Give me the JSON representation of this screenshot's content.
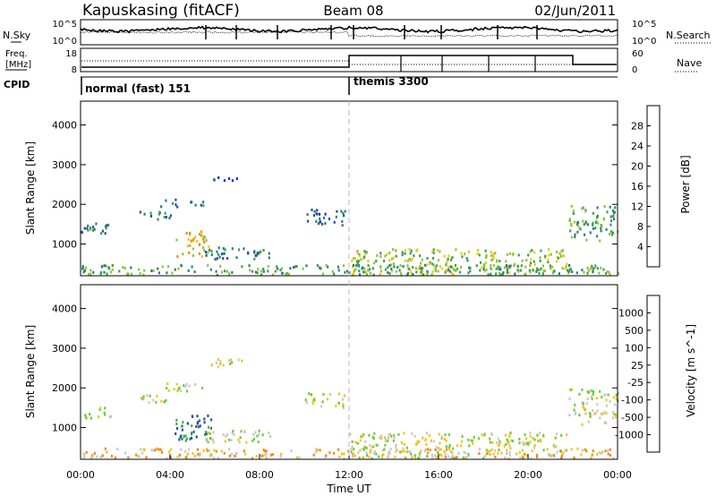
{
  "header": {
    "site": "Kapuskasing (fitACF)",
    "beam": "Beam 08",
    "date": "02/Jun/2011"
  },
  "noise_panel": {
    "left_label": "N.Sky",
    "right_label": "N.Search",
    "left_ticks": [
      "10^5",
      "10^0"
    ],
    "right_ticks": [
      "10^5",
      "10^0"
    ]
  },
  "freq_panel": {
    "left_label_line1": "Freq.",
    "left_label_line2": "[MHz]",
    "left_ticks": [
      "18",
      "8"
    ],
    "right_label": "Nave",
    "right_ticks": [
      "60",
      "0"
    ]
  },
  "cpid_panel": {
    "label": "CPID",
    "modes": [
      {
        "name": "normal (fast) 151",
        "start_hour": 0
      },
      {
        "name": "themis 3300",
        "start_hour": 12
      }
    ]
  },
  "chart_data": [
    {
      "type": "heatmap",
      "panel": "power",
      "ylabel": "Slant Range [km]",
      "yticks": [
        "1000",
        "2000",
        "3000",
        "4000"
      ],
      "ylim": [
        200,
        4600
      ],
      "xlim": [
        0,
        24
      ],
      "colorbar_label": "Power [dB]",
      "colorbar_ticks": [
        "4",
        "8",
        "12",
        "16",
        "20",
        "24",
        "28"
      ],
      "colors": [
        "#1a2ee0",
        "#224fa8",
        "#2f7f73",
        "#3e9e55",
        "#8cc63f",
        "#f2c41a",
        "#f08a10",
        "#e84a0c",
        "#e01010"
      ],
      "scatter_regions": [
        {
          "t": [
            0.0,
            1.3
          ],
          "r": [
            1250,
            1550
          ],
          "level": 2
        },
        {
          "t": [
            2.5,
            4.0
          ],
          "r": [
            1650,
            1850
          ],
          "level": 2
        },
        {
          "t": [
            3.5,
            5.5
          ],
          "r": [
            1950,
            2150
          ],
          "level": 2
        },
        {
          "t": [
            4.2,
            5.8
          ],
          "r": [
            700,
            1350
          ],
          "level": 5
        },
        {
          "t": [
            5.8,
            7.2
          ],
          "r": [
            2550,
            2750
          ],
          "level": 1
        },
        {
          "t": [
            5.5,
            8.5
          ],
          "r": [
            650,
            950
          ],
          "level": 2
        },
        {
          "t": [
            10.0,
            11.8
          ],
          "r": [
            1500,
            1900
          ],
          "level": 1
        },
        {
          "t": [
            12.0,
            21.8
          ],
          "r": [
            250,
            900
          ],
          "level": 4
        },
        {
          "t": [
            21.8,
            24.0
          ],
          "r": [
            1100,
            2000
          ],
          "level": 3
        },
        {
          "t": [
            0.0,
            24.0
          ],
          "r": [
            250,
            500
          ],
          "level": 3
        }
      ]
    },
    {
      "type": "heatmap",
      "panel": "velocity",
      "ylabel": "Slant Range [km]",
      "yticks": [
        "1000",
        "2000",
        "3000",
        "4000"
      ],
      "ylim": [
        200,
        4600
      ],
      "xlim": [
        0,
        24
      ],
      "xticks": [
        "00:00",
        "04:00",
        "08:00",
        "12:00",
        "16:00",
        "20:00",
        "00:00"
      ],
      "xlabel": "Time UT",
      "colorbar_label": "Velocity [m s^-1]",
      "colorbar_ticks": [
        "1000",
        "500",
        "100",
        "25",
        "-25",
        "-100",
        "-500",
        "-1000"
      ],
      "colors": [
        "#2233c8",
        "#224fa8",
        "#2f7f73",
        "#4aa852",
        "#6ccc3a",
        "#c8c8c8",
        "#f2c41a",
        "#f08a10",
        "#e84a0c",
        "#e01010"
      ],
      "scatter_regions": [
        {
          "t": [
            0.0,
            1.3
          ],
          "r": [
            1250,
            1550
          ],
          "level": 5
        },
        {
          "t": [
            2.5,
            4.0
          ],
          "r": [
            1650,
            1850
          ],
          "level": 5
        },
        {
          "t": [
            3.5,
            5.5
          ],
          "r": [
            1950,
            2150
          ],
          "level": 5
        },
        {
          "t": [
            4.2,
            5.8
          ],
          "r": [
            700,
            1350
          ],
          "level": 2
        },
        {
          "t": [
            5.8,
            7.2
          ],
          "r": [
            2550,
            2750
          ],
          "level": 5
        },
        {
          "t": [
            5.5,
            8.5
          ],
          "r": [
            650,
            950
          ],
          "level": 5
        },
        {
          "t": [
            10.0,
            11.8
          ],
          "r": [
            1500,
            1900
          ],
          "level": 5
        },
        {
          "t": [
            12.0,
            21.8
          ],
          "r": [
            250,
            900
          ],
          "level": 5
        },
        {
          "t": [
            21.8,
            24.0
          ],
          "r": [
            1100,
            2000
          ],
          "level": 5
        },
        {
          "t": [
            0.0,
            24.0
          ],
          "r": [
            250,
            500
          ],
          "level": 6
        }
      ]
    }
  ]
}
